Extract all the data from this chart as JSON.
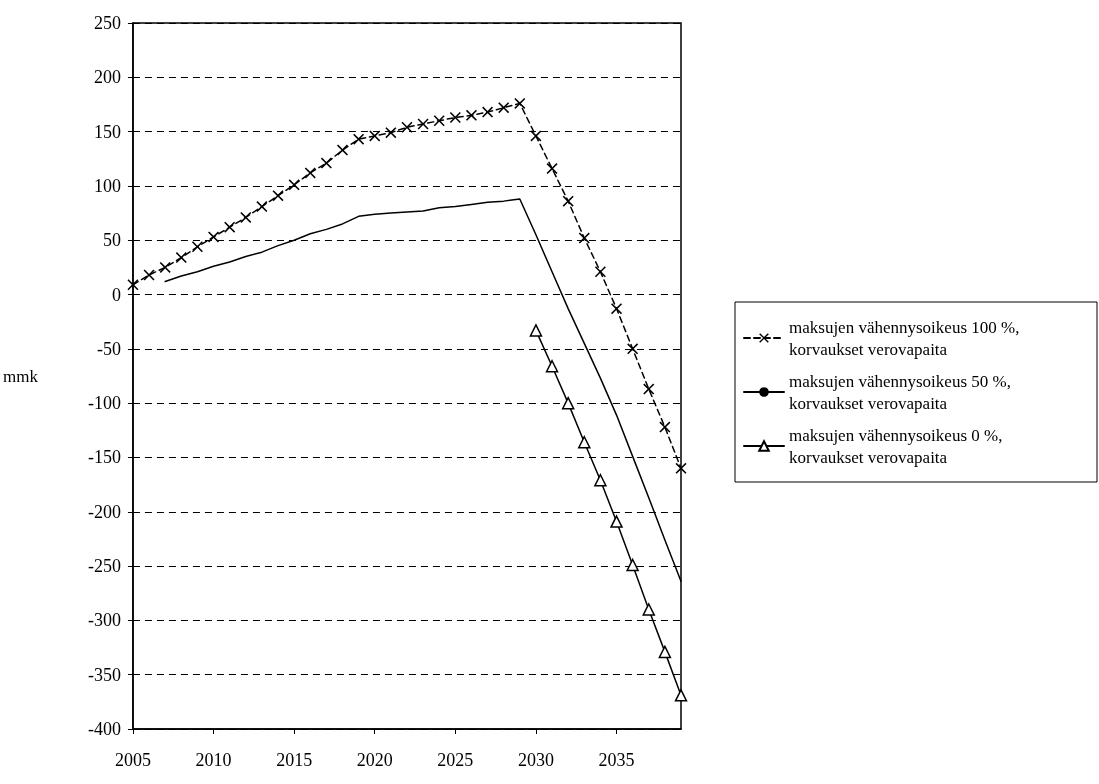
{
  "chart_data": {
    "type": "line",
    "ylabel": "mmk",
    "x": [
      2005,
      2006,
      2007,
      2008,
      2009,
      2010,
      2011,
      2012,
      2013,
      2014,
      2015,
      2016,
      2017,
      2018,
      2019,
      2020,
      2021,
      2022,
      2023,
      2024,
      2025,
      2026,
      2027,
      2028,
      2029,
      2030,
      2031,
      2032,
      2033,
      2034,
      2035,
      2036,
      2037,
      2038,
      2039
    ],
    "series": [
      {
        "name": "maksujen vähennysoikeus 100 %, korvaukset verovapaita",
        "color": "#000000",
        "marker": "cross",
        "line_style": "dashed",
        "values": [
          9,
          18,
          25,
          34,
          44,
          53,
          62,
          71,
          81,
          91,
          101,
          112,
          121,
          133,
          143,
          146,
          149,
          154,
          157,
          160,
          163,
          165,
          168,
          172,
          176,
          146,
          116,
          86,
          52,
          21,
          -13,
          -50,
          -87,
          -122,
          -160
        ]
      },
      {
        "name": "maksujen vähennysoikeus 50 %, korvaukset verovapaita",
        "color": "#000000",
        "marker": "none",
        "line_style": "solid",
        "values": [
          null,
          null,
          12,
          17,
          21,
          26,
          30,
          35,
          39,
          45,
          50,
          56,
          60,
          65,
          72,
          74,
          75,
          76,
          77,
          80,
          81,
          83,
          85,
          86,
          88,
          55,
          21,
          -13,
          -45,
          -77,
          -111,
          -149,
          -187,
          -226,
          -264
        ]
      },
      {
        "name": "maksujen vähennysoikeus 0 %, korvaukset verovapaita",
        "color": "#000000",
        "marker": "triangle",
        "line_style": "solid",
        "values": [
          null,
          null,
          null,
          null,
          null,
          null,
          null,
          null,
          null,
          null,
          null,
          null,
          null,
          null,
          null,
          null,
          null,
          null,
          null,
          null,
          null,
          null,
          null,
          null,
          null,
          -33,
          -66,
          -100,
          -136,
          -171,
          -209,
          -249,
          -290,
          -329,
          -369
        ]
      }
    ],
    "xlim": [
      2005,
      2039
    ],
    "xticks": [
      2005,
      2010,
      2015,
      2020,
      2025,
      2030,
      2035
    ],
    "ylim": [
      -400,
      250
    ],
    "yticks": [
      -400,
      -350,
      -300,
      -250,
      -200,
      -150,
      -100,
      -50,
      0,
      50,
      100,
      150,
      200,
      250
    ],
    "grid": "y",
    "legend": "right"
  }
}
